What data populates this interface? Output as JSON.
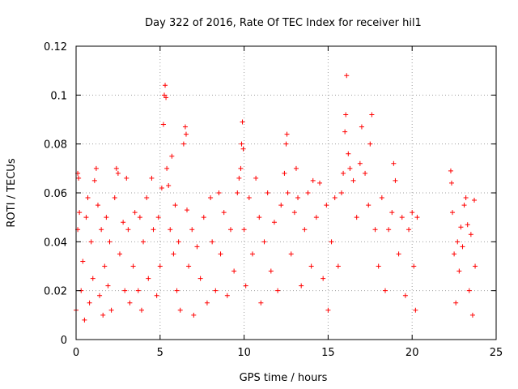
{
  "chart_data": {
    "type": "scatter",
    "title": "Day 322 of 2016, Rate Of TEC Index for receiver hil1",
    "xlabel": "GPS time / hours",
    "ylabel": "ROTI / TECUs",
    "xlim": [
      0,
      25
    ],
    "ylim": [
      0,
      0.12
    ],
    "xticks": [
      0,
      5,
      10,
      15,
      20,
      25
    ],
    "xtick_labels": [
      "0",
      "5",
      "10",
      "15",
      "20",
      "25"
    ],
    "yticks": [
      0,
      0.02,
      0.04,
      0.06,
      0.08,
      0.1,
      0.12
    ],
    "ytick_labels": [
      "0",
      "0.02",
      "0.04",
      "0.06",
      "0.08",
      "0.1",
      "0.12"
    ],
    "grid": true,
    "marker": "+",
    "color": "#ff0000",
    "series": [
      {
        "name": "ROTI",
        "points": [
          [
            0.0,
            0.012
          ],
          [
            0.1,
            0.045
          ],
          [
            0.1,
            0.068
          ],
          [
            0.15,
            0.066
          ],
          [
            0.2,
            0.052
          ],
          [
            0.3,
            0.02
          ],
          [
            0.4,
            0.032
          ],
          [
            0.5,
            0.008
          ],
          [
            0.6,
            0.05
          ],
          [
            0.7,
            0.058
          ],
          [
            0.8,
            0.015
          ],
          [
            0.9,
            0.04
          ],
          [
            1.0,
            0.025
          ],
          [
            1.1,
            0.065
          ],
          [
            1.2,
            0.07
          ],
          [
            1.3,
            0.055
          ],
          [
            1.4,
            0.018
          ],
          [
            1.5,
            0.045
          ],
          [
            1.6,
            0.01
          ],
          [
            1.7,
            0.03
          ],
          [
            1.8,
            0.05
          ],
          [
            1.9,
            0.022
          ],
          [
            2.0,
            0.04
          ],
          [
            2.1,
            0.012
          ],
          [
            2.3,
            0.058
          ],
          [
            2.4,
            0.07
          ],
          [
            2.5,
            0.068
          ],
          [
            2.6,
            0.035
          ],
          [
            2.8,
            0.048
          ],
          [
            2.9,
            0.02
          ],
          [
            3.0,
            0.066
          ],
          [
            3.1,
            0.045
          ],
          [
            3.2,
            0.015
          ],
          [
            3.4,
            0.03
          ],
          [
            3.5,
            0.052
          ],
          [
            3.7,
            0.02
          ],
          [
            3.8,
            0.05
          ],
          [
            3.9,
            0.012
          ],
          [
            4.0,
            0.04
          ],
          [
            4.2,
            0.058
          ],
          [
            4.3,
            0.025
          ],
          [
            4.5,
            0.066
          ],
          [
            4.6,
            0.045
          ],
          [
            4.8,
            0.018
          ],
          [
            4.9,
            0.05
          ],
          [
            5.0,
            0.03
          ],
          [
            5.1,
            0.062
          ],
          [
            5.2,
            0.088
          ],
          [
            5.25,
            0.1
          ],
          [
            5.3,
            0.104
          ],
          [
            5.35,
            0.099
          ],
          [
            5.4,
            0.07
          ],
          [
            5.5,
            0.063
          ],
          [
            5.6,
            0.045
          ],
          [
            5.7,
            0.075
          ],
          [
            5.8,
            0.035
          ],
          [
            5.9,
            0.055
          ],
          [
            6.0,
            0.02
          ],
          [
            6.1,
            0.04
          ],
          [
            6.2,
            0.012
          ],
          [
            6.4,
            0.08
          ],
          [
            6.5,
            0.087
          ],
          [
            6.55,
            0.084
          ],
          [
            6.6,
            0.053
          ],
          [
            6.7,
            0.03
          ],
          [
            6.9,
            0.045
          ],
          [
            7.0,
            0.01
          ],
          [
            7.2,
            0.038
          ],
          [
            7.4,
            0.025
          ],
          [
            7.6,
            0.05
          ],
          [
            7.8,
            0.015
          ],
          [
            8.0,
            0.058
          ],
          [
            8.1,
            0.04
          ],
          [
            8.3,
            0.02
          ],
          [
            8.5,
            0.06
          ],
          [
            8.6,
            0.035
          ],
          [
            8.8,
            0.052
          ],
          [
            9.0,
            0.018
          ],
          [
            9.2,
            0.045
          ],
          [
            9.4,
            0.028
          ],
          [
            9.6,
            0.06
          ],
          [
            9.7,
            0.066
          ],
          [
            9.8,
            0.07
          ],
          [
            9.85,
            0.08
          ],
          [
            9.9,
            0.089
          ],
          [
            9.95,
            0.078
          ],
          [
            10.0,
            0.045
          ],
          [
            10.1,
            0.022
          ],
          [
            10.3,
            0.058
          ],
          [
            10.5,
            0.035
          ],
          [
            10.7,
            0.066
          ],
          [
            10.9,
            0.05
          ],
          [
            11.0,
            0.015
          ],
          [
            11.2,
            0.04
          ],
          [
            11.4,
            0.06
          ],
          [
            11.6,
            0.028
          ],
          [
            11.8,
            0.048
          ],
          [
            12.0,
            0.02
          ],
          [
            12.2,
            0.055
          ],
          [
            12.4,
            0.068
          ],
          [
            12.5,
            0.08
          ],
          [
            12.55,
            0.084
          ],
          [
            12.6,
            0.06
          ],
          [
            12.8,
            0.035
          ],
          [
            13.0,
            0.052
          ],
          [
            13.1,
            0.07
          ],
          [
            13.2,
            0.058
          ],
          [
            13.4,
            0.022
          ],
          [
            13.6,
            0.045
          ],
          [
            13.8,
            0.06
          ],
          [
            14.0,
            0.03
          ],
          [
            14.1,
            0.065
          ],
          [
            14.3,
            0.05
          ],
          [
            14.5,
            0.064
          ],
          [
            14.7,
            0.025
          ],
          [
            14.9,
            0.055
          ],
          [
            15.0,
            0.012
          ],
          [
            15.2,
            0.04
          ],
          [
            15.4,
            0.058
          ],
          [
            15.6,
            0.03
          ],
          [
            15.8,
            0.06
          ],
          [
            15.9,
            0.068
          ],
          [
            16.0,
            0.085
          ],
          [
            16.05,
            0.092
          ],
          [
            16.1,
            0.108
          ],
          [
            16.2,
            0.076
          ],
          [
            16.3,
            0.07
          ],
          [
            16.5,
            0.065
          ],
          [
            16.7,
            0.05
          ],
          [
            16.9,
            0.072
          ],
          [
            17.0,
            0.087
          ],
          [
            17.2,
            0.068
          ],
          [
            17.4,
            0.055
          ],
          [
            17.5,
            0.08
          ],
          [
            17.6,
            0.092
          ],
          [
            17.8,
            0.045
          ],
          [
            18.0,
            0.03
          ],
          [
            18.2,
            0.058
          ],
          [
            18.4,
            0.02
          ],
          [
            18.6,
            0.045
          ],
          [
            18.8,
            0.052
          ],
          [
            18.9,
            0.072
          ],
          [
            19.0,
            0.065
          ],
          [
            19.2,
            0.035
          ],
          [
            19.4,
            0.05
          ],
          [
            19.6,
            0.018
          ],
          [
            19.8,
            0.045
          ],
          [
            20.0,
            0.052
          ],
          [
            20.1,
            0.03
          ],
          [
            20.2,
            0.012
          ],
          [
            20.3,
            0.05
          ],
          [
            22.3,
            0.069
          ],
          [
            22.35,
            0.064
          ],
          [
            22.4,
            0.052
          ],
          [
            22.5,
            0.035
          ],
          [
            22.6,
            0.015
          ],
          [
            22.7,
            0.04
          ],
          [
            22.8,
            0.028
          ],
          [
            22.9,
            0.046
          ],
          [
            23.0,
            0.038
          ],
          [
            23.1,
            0.055
          ],
          [
            23.2,
            0.058
          ],
          [
            23.3,
            0.047
          ],
          [
            23.4,
            0.02
          ],
          [
            23.5,
            0.043
          ],
          [
            23.6,
            0.01
          ],
          [
            23.7,
            0.057
          ],
          [
            23.75,
            0.03
          ]
        ]
      }
    ]
  }
}
